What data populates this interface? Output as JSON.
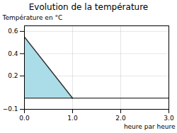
{
  "chart_data": {
    "type": "area",
    "title": "Evolution de la température",
    "xlabel": "heure par heure",
    "ylabel": "Température en °C",
    "x": [
      0,
      1
    ],
    "series": [
      {
        "type": "area",
        "color": "#aadde8",
        "values": [
          0.55,
          0.0
        ]
      },
      {
        "type": "line",
        "color": "#333333",
        "values": [
          0.55,
          0.0
        ]
      }
    ],
    "xlim": [
      0,
      3
    ],
    "xticks": [
      0,
      1,
      2,
      3
    ],
    "ylim": [
      -0.1,
      0.65
    ],
    "yticks": [
      -0.1,
      0.2,
      0.4,
      0.6
    ],
    "grid": true
  }
}
